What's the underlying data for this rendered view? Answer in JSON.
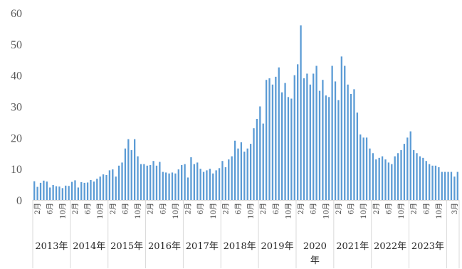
{
  "chart_data": {
    "type": "bar",
    "title": "",
    "xlabel": "",
    "ylabel": "",
    "ylim": [
      0,
      60
    ],
    "yticks": [
      0,
      10,
      20,
      30,
      40,
      50,
      60
    ],
    "grid": false,
    "legend": "none",
    "bar_color": "#5b9bd5",
    "years": [
      "2013年",
      "2014年",
      "2015年",
      "2016年",
      "2017年",
      "2018年",
      "2019年",
      "2020年",
      "2021年",
      "2022年",
      "2023年"
    ],
    "month_tick_labels": [
      "2月",
      "6月",
      "10月",
      "3月"
    ],
    "values": [
      6.0,
      4.2,
      5.5,
      6.2,
      5.9,
      4.0,
      4.8,
      4.4,
      4.3,
      3.8,
      4.6,
      4.5,
      5.8,
      6.3,
      4.0,
      5.7,
      5.5,
      5.6,
      6.4,
      5.9,
      6.8,
      7.5,
      8.2,
      8.0,
      9.5,
      9.8,
      7.5,
      11.0,
      12.0,
      16.5,
      19.5,
      16.0,
      19.5,
      14.0,
      11.5,
      11.5,
      11.0,
      11.2,
      12.5,
      11.0,
      12.2,
      9.0,
      8.8,
      8.5,
      8.8,
      8.5,
      9.8,
      11.2,
      11.5,
      7.2,
      13.7,
      11.5,
      12.0,
      10.0,
      9.0,
      9.5,
      10.0,
      8.5,
      9.5,
      10.2,
      12.5,
      10.5,
      13.0,
      14.0,
      19.0,
      16.5,
      18.5,
      15.5,
      16.5,
      18.0,
      23.0,
      26.0,
      30.0,
      24.5,
      38.5,
      39.0,
      37.0,
      39.5,
      42.5,
      34.5,
      37.5,
      33.0,
      32.5,
      40.0,
      43.5,
      56.0,
      39.0,
      40.5,
      37.0,
      40.5,
      43.0,
      35.0,
      38.5,
      33.5,
      33.0,
      43.0,
      38.0,
      32.0,
      46.0,
      43.0,
      37.0,
      34.0,
      35.5,
      28.0,
      21.0,
      20.0,
      20.0,
      16.5,
      15.0,
      13.0,
      13.5,
      14.0,
      13.0,
      12.0,
      11.5,
      14.0,
      15.0,
      16.0,
      18.0,
      20.0,
      22.0,
      16.0,
      15.0,
      14.0,
      13.5,
      12.5,
      11.5,
      11.0,
      11.0,
      10.5,
      9.0,
      9.0,
      9.0,
      9.0,
      7.5,
      9.0
    ]
  }
}
